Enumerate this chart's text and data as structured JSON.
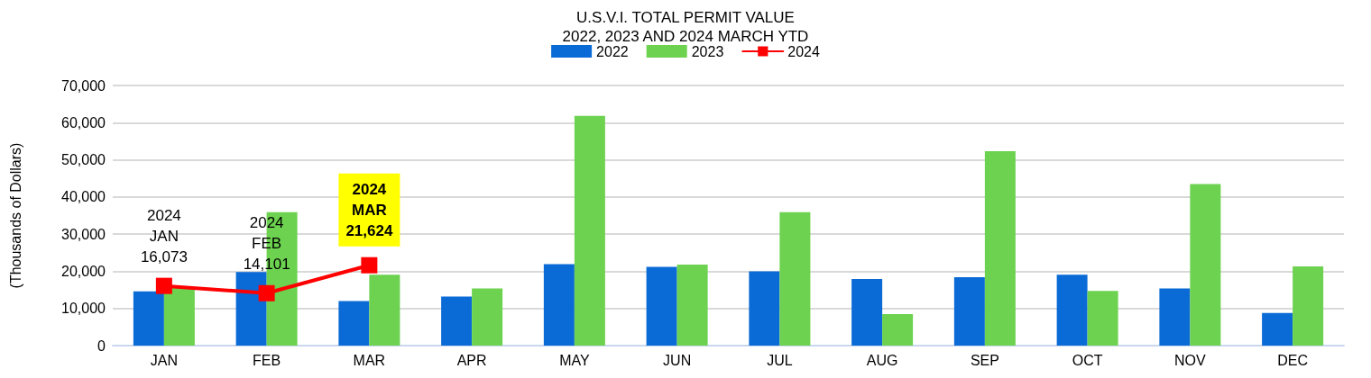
{
  "chart_data": {
    "type": "bar",
    "title": "U.S.V.I. TOTAL PERMIT VALUE\n2022, 2023 AND 2024 MARCH YTD",
    "ylabel": "(Thousands of Dollars)",
    "categories": [
      "JAN",
      "FEB",
      "MAR",
      "APR",
      "MAY",
      "JUN",
      "JUL",
      "AUG",
      "SEP",
      "OCT",
      "NOV",
      "DEC"
    ],
    "series": [
      {
        "name": "2022",
        "color": "#0a6ad6",
        "values": [
          14600,
          19800,
          12000,
          13200,
          21900,
          21200,
          20000,
          17900,
          18400,
          19100,
          15400,
          8800
        ]
      },
      {
        "name": "2023",
        "color": "#6cd24f",
        "values": [
          15500,
          35900,
          19100,
          15400,
          61800,
          21800,
          35900,
          8500,
          52300,
          14700,
          43500,
          21300
        ]
      },
      {
        "name": "2024",
        "type": "line",
        "color": "#ff0000",
        "marker": "square",
        "line_style": "solid",
        "values": [
          16073,
          14101,
          21624,
          null,
          null,
          null,
          null,
          null,
          null,
          null,
          null,
          null
        ],
        "value_labels": [
          "2024\nJAN\n16,073",
          "2024\nFEB\n14,101",
          "2024\nMAR\n21,624",
          null,
          null,
          null,
          null,
          null,
          null,
          null,
          null,
          null
        ]
      }
    ],
    "ylim": [
      0,
      70000
    ],
    "yticks": [
      0,
      {
        "value": 10000,
        "label": "10,000"
      },
      {
        "value": 20000,
        "label": "20,000"
      },
      {
        "value": 30000,
        "label": "30,000"
      },
      {
        "value": 40000,
        "label": "40,000"
      },
      {
        "value": 50000,
        "label": "50,000"
      },
      {
        "value": 60000,
        "label": "60,000"
      },
      {
        "value": 70000,
        "label": "70,000"
      }
    ],
    "grid": "y",
    "legend": "top"
  }
}
